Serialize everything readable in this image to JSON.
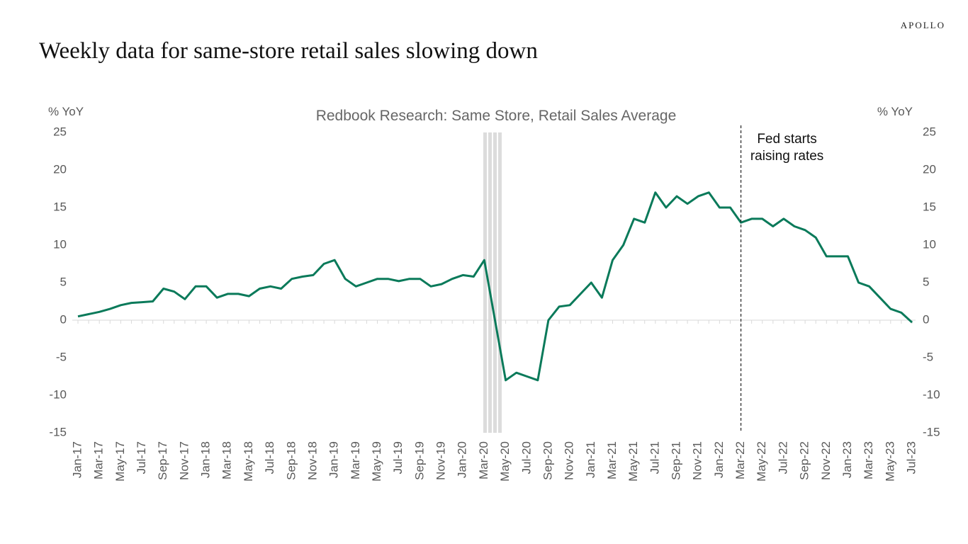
{
  "brand": "APOLLO",
  "chart_data": {
    "type": "line",
    "title": "Weekly data for same-store retail sales slowing down",
    "subtitle": "Redbook Research: Same Store, Retail Sales Average",
    "y_label": "% YoY",
    "y2_label": "% YoY",
    "categories": [
      "Jan-17",
      null,
      "Mar-17",
      null,
      "May-17",
      null,
      "Jul-17",
      null,
      "Sep-17",
      null,
      "Nov-17",
      null,
      "Jan-18",
      null,
      "Mar-18",
      null,
      "May-18",
      null,
      "Jul-18",
      null,
      "Sep-18",
      null,
      "Nov-18",
      null,
      "Jan-19",
      null,
      "Mar-19",
      null,
      "May-19",
      null,
      "Jul-19",
      null,
      "Sep-19",
      null,
      "Nov-19",
      null,
      "Jan-20",
      null,
      "Mar-20",
      null,
      "May-20",
      null,
      "Jul-20",
      null,
      "Sep-20",
      null,
      "Nov-20",
      null,
      "Jan-21",
      null,
      "Mar-21",
      null,
      "May-21",
      null,
      "Jul-21",
      null,
      "Sep-21",
      null,
      "Nov-21",
      null,
      "Jan-22",
      null,
      "Mar-22",
      null,
      "May-22",
      null,
      "Jul-22",
      null,
      "Sep-22",
      null,
      "Nov-22",
      null,
      "Jan-23",
      null,
      "Mar-23",
      null,
      "May-23",
      null,
      "Jul-23"
    ],
    "series": [
      {
        "name": "Redbook Research: Same Store, Retail Sales Average",
        "color": "#0a7a5a",
        "values": [
          0.5,
          0.8,
          1.1,
          1.5,
          2,
          2.3,
          2.4,
          2.5,
          4.2,
          3.8,
          2.8,
          4.5,
          4.5,
          3,
          3.5,
          3.5,
          3.2,
          4.2,
          4.5,
          4.2,
          5.5,
          5.8,
          6,
          7.5,
          8,
          5.5,
          4.5,
          5,
          5.5,
          5.5,
          5.2,
          5.5,
          5.5,
          4.5,
          4.8,
          5.5,
          6,
          5.8,
          8,
          0,
          -8,
          -7,
          -7.5,
          -8,
          0,
          1.8,
          2,
          3.5,
          5,
          3,
          8,
          10,
          13.5,
          13,
          17,
          15,
          16.5,
          15.5,
          16.5,
          17,
          15,
          15,
          13,
          13.5,
          13.5,
          12.5,
          13.5,
          12.5,
          12,
          11,
          8.5,
          8.5,
          8.5,
          5,
          4.5,
          3,
          1.5,
          1,
          -0.3
        ]
      }
    ],
    "ylim": [
      -15,
      25
    ],
    "yticks": [
      -15,
      -10,
      -5,
      0,
      5,
      10,
      15,
      20,
      25
    ],
    "y2lim": [
      -15,
      25
    ],
    "y2ticks": [
      -15,
      -10,
      -5,
      0,
      5,
      10,
      15,
      20,
      25
    ],
    "annotations": [
      {
        "text": [
          "Fed starts",
          "raising rates"
        ],
        "x": "Mar-22"
      }
    ]
  }
}
